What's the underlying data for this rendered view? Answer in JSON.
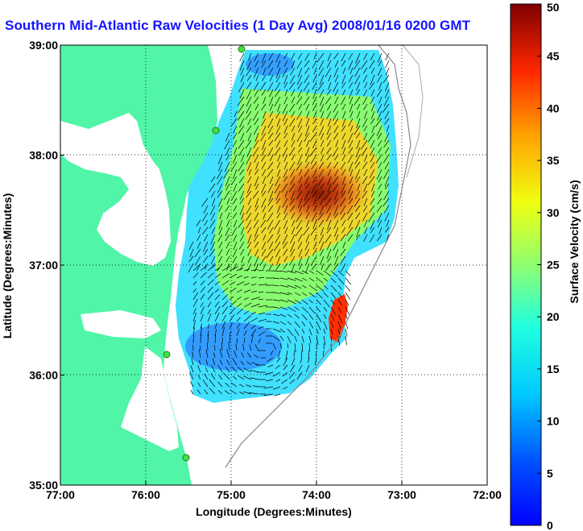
{
  "title": "Southern Mid-Atlantic Raw Velocities (1 Day Avg) 2008/01/16 0200 GMT",
  "map": {
    "xlabel": "Longitude (Degrees:Minutes)",
    "ylabel": "Latitude (Degrees:Minutes)",
    "lon_ticks": [
      "77:00",
      "76:00",
      "75:00",
      "74:00",
      "73:00",
      "72:00"
    ],
    "lat_ticks": [
      "39:00",
      "38:00",
      "37:00",
      "36:00",
      "35:00"
    ],
    "lon_range": [
      -77,
      -72
    ],
    "lat_range": [
      35,
      39
    ],
    "grid": "dotted",
    "land_color": "#50f5a8",
    "colorbar": {
      "label": "Surface Velocity (cm/s)",
      "ticks": [
        "0",
        "5",
        "10",
        "15",
        "20",
        "25",
        "30",
        "35",
        "40",
        "45",
        "50"
      ],
      "range": [
        0,
        50
      ],
      "colormap": "jet"
    },
    "stations_icon": "green-circle-icon"
  }
}
